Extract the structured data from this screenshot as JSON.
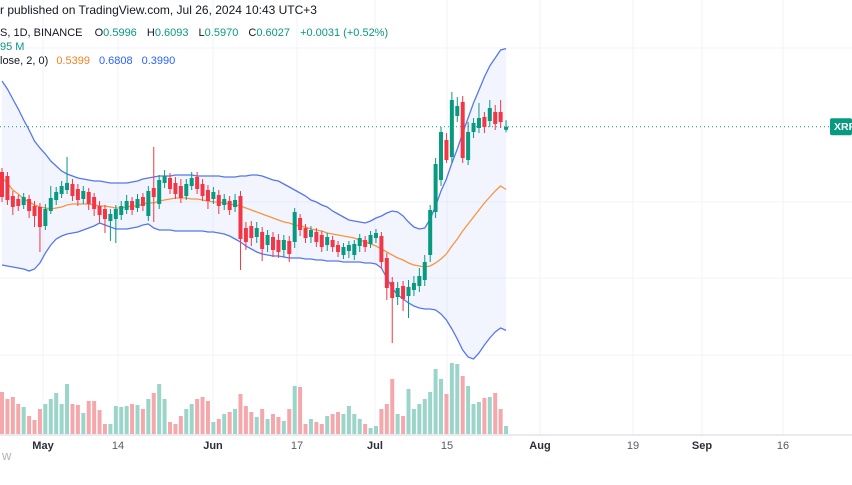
{
  "header": {
    "attribution": "r published on TradingView.com, Jul 26, 2024 10:43 UTC+3",
    "series": {
      "symbol_fragment": "S, 1D, BINANCE",
      "o_label": "O",
      "o": "0.5996",
      "h_label": "H",
      "h": "0.6093",
      "l_label": "L",
      "l": "0.5970",
      "c_label": "C",
      "c": "0.6027",
      "change": "+0.0031 (+0.52%)"
    },
    "volume_fragment": "95 M",
    "bb": {
      "settings_fragment": "lose, 2, 0)",
      "basis": "0.5399",
      "upper": "0.6808",
      "lower": "0.3990"
    }
  },
  "price_label": {
    "text": "XRP"
  },
  "watermark": {
    "text": "w"
  },
  "colors": {
    "up": "#089981",
    "down": "#f23645",
    "vol_up": "#9bd5c9",
    "vol_down": "#f5a8ab",
    "band_line": "#5577ee",
    "band_fill": "rgba(86,120,242,0.07)",
    "basis_line": "#f79540",
    "price_line": "#089981",
    "badge_bg": "#089981",
    "badge_text": "#ffffff",
    "grid": "#f0f3fa",
    "axis_line": "#d1d4dc",
    "tick_month": "#2a2e39",
    "tick_day": "#555b66"
  },
  "chart_data": {
    "type": "candlestick",
    "title": "",
    "exchange_fragment": "S, 1D, BINANCE",
    "last_bar": {
      "open": 0.5996,
      "high": 0.6093,
      "low": 0.597,
      "close": 0.6027,
      "change_text": "+0.0031 (+0.52%)"
    },
    "price_line": 0.6027,
    "ylim": [
      0.2444,
      0.7294
    ],
    "grid": true,
    "x_ticks": [
      {
        "label": "May",
        "x": 43,
        "month": true
      },
      {
        "label": "14",
        "x": 118,
        "month": false
      },
      {
        "label": "Jun",
        "x": 213,
        "month": true
      },
      {
        "label": "17",
        "x": 297,
        "month": false
      },
      {
        "label": "Jul",
        "x": 375,
        "month": true
      },
      {
        "label": "15",
        "x": 447,
        "month": false
      },
      {
        "label": "Aug",
        "x": 540,
        "month": true
      },
      {
        "label": "19",
        "x": 633,
        "month": false
      },
      {
        "label": "Sep",
        "x": 702,
        "month": true
      },
      {
        "label": "16",
        "x": 783,
        "month": false
      }
    ],
    "candles": [
      [
        0.5574,
        0.5614,
        0.5274,
        0.5324,
        42
      ],
      [
        0.5534,
        0.5574,
        0.5244,
        0.5294,
        35
      ],
      [
        0.5334,
        0.5384,
        0.5144,
        0.5224,
        37
      ],
      [
        0.5304,
        0.5344,
        0.5184,
        0.5234,
        30
      ],
      [
        0.5244,
        0.5364,
        0.5204,
        0.5324,
        27
      ],
      [
        0.5304,
        0.5344,
        0.5114,
        0.5184,
        18
      ],
      [
        0.5234,
        0.5284,
        0.5024,
        0.5134,
        14
      ],
      [
        0.5224,
        0.5264,
        0.4774,
        0.5024,
        25
      ],
      [
        0.5034,
        0.5254,
        0.4994,
        0.5204,
        30
      ],
      [
        0.5184,
        0.5434,
        0.5154,
        0.5314,
        35
      ],
      [
        0.5294,
        0.5424,
        0.5244,
        0.5374,
        41
      ],
      [
        0.5354,
        0.5484,
        0.5314,
        0.5434,
        30
      ],
      [
        0.5394,
        0.5724,
        0.5354,
        0.5464,
        50
      ],
      [
        0.5454,
        0.5504,
        0.5284,
        0.5334,
        30
      ],
      [
        0.5404,
        0.5454,
        0.5234,
        0.5294,
        29
      ],
      [
        0.5304,
        0.5434,
        0.5254,
        0.5384,
        21
      ],
      [
        0.5374,
        0.5414,
        0.5194,
        0.5254,
        33
      ],
      [
        0.5324,
        0.5364,
        0.5134,
        0.5204,
        33
      ],
      [
        0.5234,
        0.5284,
        0.5064,
        0.5144,
        24
      ],
      [
        0.5204,
        0.5244,
        0.4964,
        0.5104,
        10
      ],
      [
        0.5084,
        0.5204,
        0.4884,
        0.5154,
        10
      ],
      [
        0.5104,
        0.5244,
        0.4864,
        0.5204,
        28
      ],
      [
        0.5144,
        0.5284,
        0.5094,
        0.5234,
        27
      ],
      [
        0.5194,
        0.5344,
        0.5154,
        0.5284,
        28
      ],
      [
        0.5284,
        0.5324,
        0.5144,
        0.5194,
        30
      ],
      [
        0.5214,
        0.5354,
        0.5174,
        0.5304,
        29
      ],
      [
        0.5324,
        0.5364,
        0.5184,
        0.5234,
        25
      ],
      [
        0.5134,
        0.5434,
        0.5084,
        0.5384,
        35
      ],
      [
        0.5414,
        0.5824,
        0.5074,
        0.5324,
        41
      ],
      [
        0.5254,
        0.5544,
        0.5204,
        0.5494,
        50
      ],
      [
        0.5464,
        0.5594,
        0.5414,
        0.5534,
        35
      ],
      [
        0.5514,
        0.5564,
        0.5354,
        0.5404,
        12
      ],
      [
        0.5464,
        0.5524,
        0.5304,
        0.5354,
        10
      ],
      [
        0.5434,
        0.5504,
        0.5264,
        0.5314,
        18
      ],
      [
        0.5334,
        0.5504,
        0.5294,
        0.5454,
        25
      ],
      [
        0.5434,
        0.5574,
        0.5394,
        0.5514,
        30
      ],
      [
        0.5524,
        0.5574,
        0.5354,
        0.5404,
        35
      ],
      [
        0.5454,
        0.5504,
        0.5284,
        0.5334,
        37
      ],
      [
        0.5394,
        0.5444,
        0.5204,
        0.5284,
        33
      ],
      [
        0.5304,
        0.5424,
        0.5254,
        0.5374,
        12
      ],
      [
        0.5344,
        0.5394,
        0.5154,
        0.5234,
        15
      ],
      [
        0.5244,
        0.5354,
        0.5194,
        0.5304,
        20
      ],
      [
        0.5284,
        0.5334,
        0.5144,
        0.5194,
        22
      ],
      [
        0.5224,
        0.5354,
        0.5174,
        0.5294,
        25
      ],
      [
        0.5334,
        0.5384,
        0.4594,
        0.4904,
        40
      ],
      [
        0.5014,
        0.5074,
        0.4794,
        0.4874,
        28
      ],
      [
        0.5034,
        0.5084,
        0.4834,
        0.4914,
        22
      ],
      [
        0.4924,
        0.5074,
        0.4864,
        0.5014,
        17
      ],
      [
        0.4974,
        0.5024,
        0.4684,
        0.4804,
        25
      ],
      [
        0.4844,
        0.4994,
        0.4774,
        0.4944,
        15
      ],
      [
        0.4924,
        0.4974,
        0.4724,
        0.4794,
        20
      ],
      [
        0.4894,
        0.4954,
        0.4714,
        0.4774,
        17
      ],
      [
        0.4794,
        0.4944,
        0.4724,
        0.4894,
        13
      ],
      [
        0.4884,
        0.4934,
        0.4674,
        0.4754,
        25
      ],
      [
        0.4874,
        0.5214,
        0.4814,
        0.5174,
        48
      ],
      [
        0.5114,
        0.5154,
        0.4934,
        0.4994,
        47
      ],
      [
        0.5014,
        0.5054,
        0.4864,
        0.4914,
        10
      ],
      [
        0.4924,
        0.5034,
        0.4864,
        0.4994,
        15
      ],
      [
        0.4974,
        0.5014,
        0.4824,
        0.4874,
        12
      ],
      [
        0.4944,
        0.4984,
        0.4774,
        0.4824,
        10
      ],
      [
        0.4844,
        0.4964,
        0.4784,
        0.4924,
        18
      ],
      [
        0.4894,
        0.4934,
        0.4774,
        0.4824,
        20
      ],
      [
        0.4844,
        0.4884,
        0.4724,
        0.4774,
        22
      ],
      [
        0.4744,
        0.4864,
        0.4704,
        0.4824,
        20
      ],
      [
        0.4784,
        0.4884,
        0.4714,
        0.4844,
        28
      ],
      [
        0.4744,
        0.4894,
        0.4694,
        0.4854,
        20
      ],
      [
        0.4834,
        0.4954,
        0.4774,
        0.4914,
        15
      ],
      [
        0.4894,
        0.4934,
        0.4774,
        0.4824,
        10
      ],
      [
        0.4854,
        0.4984,
        0.4814,
        0.4944,
        6
      ],
      [
        0.4914,
        0.5004,
        0.4864,
        0.4964,
        8
      ],
      [
        0.4934,
        0.4974,
        0.4614,
        0.4674,
        25
      ],
      [
        0.4714,
        0.4764,
        0.4294,
        0.4414,
        30
      ],
      [
        0.4474,
        0.4524,
        0.3864,
        0.4314,
        55
      ],
      [
        0.4324,
        0.4474,
        0.4244,
        0.4414,
        20
      ],
      [
        0.4434,
        0.4484,
        0.4184,
        0.4304,
        18
      ],
      [
        0.4334,
        0.4494,
        0.4114,
        0.4424,
        45
      ],
      [
        0.4394,
        0.4534,
        0.4334,
        0.4464,
        25
      ],
      [
        0.4434,
        0.4614,
        0.4374,
        0.4534,
        30
      ],
      [
        0.4494,
        0.4744,
        0.4434,
        0.4674,
        35
      ],
      [
        0.4744,
        0.5244,
        0.4674,
        0.5194,
        42
      ],
      [
        0.5174,
        0.5714,
        0.5114,
        0.5654,
        65
      ],
      [
        0.5494,
        0.6024,
        0.5434,
        0.5974,
        55
      ],
      [
        0.5894,
        0.5964,
        0.5664,
        0.5694,
        40
      ],
      [
        0.5724,
        0.6374,
        0.5664,
        0.6294,
        71
      ],
      [
        0.6134,
        0.6324,
        0.6074,
        0.6234,
        70
      ],
      [
        0.6274,
        0.6334,
        0.5664,
        0.5714,
        58
      ],
      [
        0.5694,
        0.6074,
        0.5644,
        0.5974,
        48
      ],
      [
        0.5974,
        0.6114,
        0.5914,
        0.6064,
        30
      ],
      [
        0.6014,
        0.6264,
        0.5964,
        0.6114,
        32
      ],
      [
        0.6124,
        0.6174,
        0.5964,
        0.6024,
        36
      ],
      [
        0.6084,
        0.6294,
        0.6024,
        0.6214,
        37
      ],
      [
        0.6174,
        0.6244,
        0.5994,
        0.6054,
        41
      ],
      [
        0.6174,
        0.6294,
        0.6014,
        0.6074,
        25
      ],
      [
        0.5996,
        0.6093,
        0.597,
        0.6027,
        8
      ]
    ],
    "bollinger": {
      "settings_fragment": "lose, 2, 0)",
      "last": {
        "basis": 0.5399,
        "upper": 0.6808,
        "lower": 0.399
      },
      "upper": [
        0.6484,
        0.6404,
        0.6304,
        0.6204,
        0.6094,
        0.5994,
        0.5884,
        0.5814,
        0.5754,
        0.5684,
        0.5634,
        0.5584,
        0.5554,
        0.5534,
        0.5514,
        0.5504,
        0.5494,
        0.5484,
        0.5484,
        0.5474,
        0.5464,
        0.5464,
        0.5464,
        0.5464,
        0.5474,
        0.5484,
        0.5504,
        0.5514,
        0.5524,
        0.5534,
        0.5534,
        0.5534,
        0.5544,
        0.5544,
        0.5544,
        0.5544,
        0.5534,
        0.5534,
        0.5534,
        0.5534,
        0.5534,
        0.5524,
        0.5524,
        0.5524,
        0.5534,
        0.5534,
        0.5544,
        0.5544,
        0.5534,
        0.5514,
        0.5494,
        0.5484,
        0.5454,
        0.5424,
        0.5394,
        0.5364,
        0.5334,
        0.5294,
        0.5274,
        0.5244,
        0.5224,
        0.5184,
        0.5154,
        0.5124,
        0.5094,
        0.5084,
        0.5074,
        0.5064,
        0.5084,
        0.5114,
        0.5134,
        0.5164,
        0.5184,
        0.5174,
        0.5134,
        0.5074,
        0.5024,
        0.5004,
        0.5014,
        0.5104,
        0.5234,
        0.5384,
        0.5504,
        0.5664,
        0.5804,
        0.5964,
        0.6114,
        0.6264,
        0.6394,
        0.6524,
        0.6634,
        0.6714,
        0.6794,
        0.6808
      ],
      "basis": [
        0.5514,
        0.5464,
        0.5394,
        0.5354,
        0.5304,
        0.5274,
        0.5244,
        0.5224,
        0.5214,
        0.5204,
        0.5214,
        0.5224,
        0.5244,
        0.5254,
        0.5254,
        0.5254,
        0.5254,
        0.5244,
        0.5234,
        0.5234,
        0.5224,
        0.5214,
        0.5214,
        0.5224,
        0.5234,
        0.5234,
        0.5254,
        0.5264,
        0.5264,
        0.5284,
        0.5294,
        0.5304,
        0.5314,
        0.5314,
        0.5314,
        0.5304,
        0.5304,
        0.5294,
        0.5284,
        0.5274,
        0.5274,
        0.5264,
        0.5254,
        0.5244,
        0.5234,
        0.5214,
        0.5194,
        0.5174,
        0.5154,
        0.5134,
        0.5114,
        0.5094,
        0.5074,
        0.5064,
        0.5044,
        0.5034,
        0.5024,
        0.5004,
        0.4994,
        0.4984,
        0.4964,
        0.4954,
        0.4944,
        0.4934,
        0.4924,
        0.4914,
        0.4894,
        0.4874,
        0.4854,
        0.4834,
        0.4804,
        0.4774,
        0.4744,
        0.4714,
        0.4694,
        0.4664,
        0.4644,
        0.4634,
        0.4624,
        0.4634,
        0.4664,
        0.4704,
        0.4754,
        0.4834,
        0.4904,
        0.4984,
        0.5054,
        0.5124,
        0.5194,
        0.5264,
        0.5324,
        0.5384,
        0.5434,
        0.5399
      ],
      "lower": [
        0.4644,
        0.4634,
        0.4624,
        0.4614,
        0.4604,
        0.4584,
        0.4604,
        0.4664,
        0.4764,
        0.4844,
        0.4904,
        0.4934,
        0.4954,
        0.4964,
        0.4974,
        0.4994,
        0.5014,
        0.5034,
        0.5064,
        0.5044,
        0.5024,
        0.5004,
        0.5004,
        0.5004,
        0.5014,
        0.5024,
        0.5044,
        0.5054,
        0.5014,
        0.4994,
        0.4994,
        0.4994,
        0.4984,
        0.4984,
        0.4984,
        0.4984,
        0.4984,
        0.4984,
        0.4974,
        0.4974,
        0.4964,
        0.4954,
        0.4934,
        0.4904,
        0.4874,
        0.4834,
        0.4804,
        0.4774,
        0.4754,
        0.4744,
        0.4734,
        0.4734,
        0.4724,
        0.4714,
        0.4714,
        0.4714,
        0.4704,
        0.4704,
        0.4694,
        0.4694,
        0.4684,
        0.4684,
        0.4684,
        0.4674,
        0.4674,
        0.4674,
        0.4674,
        0.4664,
        0.4664,
        0.4654,
        0.4614,
        0.4514,
        0.4414,
        0.4344,
        0.4304,
        0.4264,
        0.4234,
        0.4214,
        0.4204,
        0.4204,
        0.4194,
        0.4154,
        0.4094,
        0.4004,
        0.3904,
        0.3794,
        0.3724,
        0.3704,
        0.3764,
        0.3844,
        0.3914,
        0.3974,
        0.4014,
        0.399
      ]
    },
    "layout": {
      "x0": 2,
      "dx": 5.42,
      "vol_base_y": 434,
      "axis_y": 435,
      "h_grid_y": [
        48,
        202,
        278,
        355
      ]
    }
  }
}
